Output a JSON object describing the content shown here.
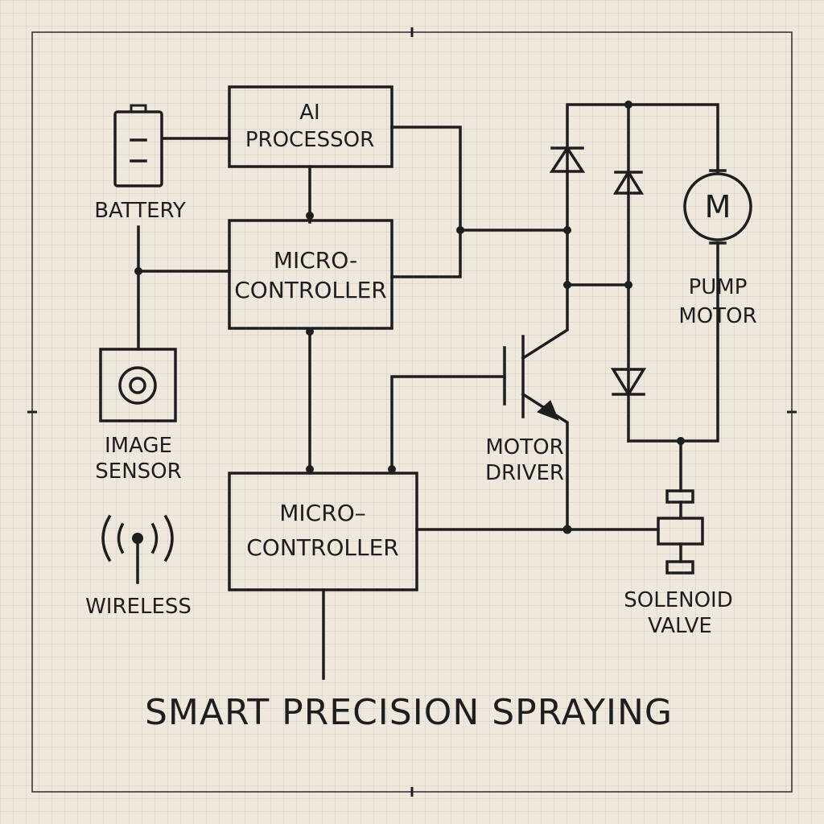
{
  "title": "SMART PRECISION SPRAYING",
  "components": {
    "ai_processor": {
      "line1": "AI",
      "line2": "PROCESSOR"
    },
    "microcontroller_top": {
      "line1": "MICRO-",
      "line2": "CONTROLLER"
    },
    "microcontroller_bottom": {
      "line1": "MICRO–",
      "line2": "CONTROLLER"
    },
    "battery": {
      "label": "BATTERY"
    },
    "image_sensor": {
      "line1": "IMAGE",
      "line2": "SENSOR"
    },
    "wireless": {
      "label": "WIRELESS"
    },
    "motor_driver": {
      "line1": "MOTOR",
      "line2": "DRIVER"
    },
    "pump_motor": {
      "symbol": "M",
      "line1": "PUMP",
      "line2": "MOTOR"
    },
    "solenoid_valve": {
      "line1": "SOLENOID",
      "line2": "VALVE"
    }
  }
}
